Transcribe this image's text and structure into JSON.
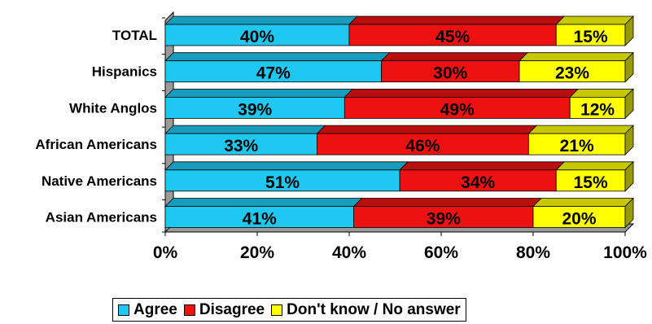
{
  "chart_data": {
    "type": "bar",
    "orientation": "horizontal",
    "stacked": true,
    "percent": true,
    "style_3d": true,
    "categories": [
      "TOTAL",
      "Hispanics",
      "White Anglos",
      "African Americans",
      "Native Americans",
      "Asian Americans"
    ],
    "series": [
      {
        "name": "Agree",
        "color": "#1ec8f0",
        "values": [
          40,
          47,
          39,
          33,
          51,
          41
        ]
      },
      {
        "name": "Disagree",
        "color": "#ee1111",
        "values": [
          45,
          30,
          49,
          46,
          34,
          39
        ]
      },
      {
        "name": "Don't know / No answer",
        "color": "#ffff00",
        "values": [
          15,
          23,
          12,
          21,
          15,
          20
        ]
      }
    ],
    "data_labels": [
      [
        "40%",
        "45%",
        "15%"
      ],
      [
        "47%",
        "30%",
        "23%"
      ],
      [
        "39%",
        "49%",
        "12%"
      ],
      [
        "33%",
        "46%",
        "21%"
      ],
      [
        "51%",
        "34%",
        "15%"
      ],
      [
        "41%",
        "39%",
        "20%"
      ]
    ],
    "x_ticks": [
      "0%",
      "20%",
      "40%",
      "60%",
      "80%",
      "100%"
    ],
    "xlim": [
      0,
      100
    ],
    "grid": false,
    "legend_position": "bottom"
  }
}
